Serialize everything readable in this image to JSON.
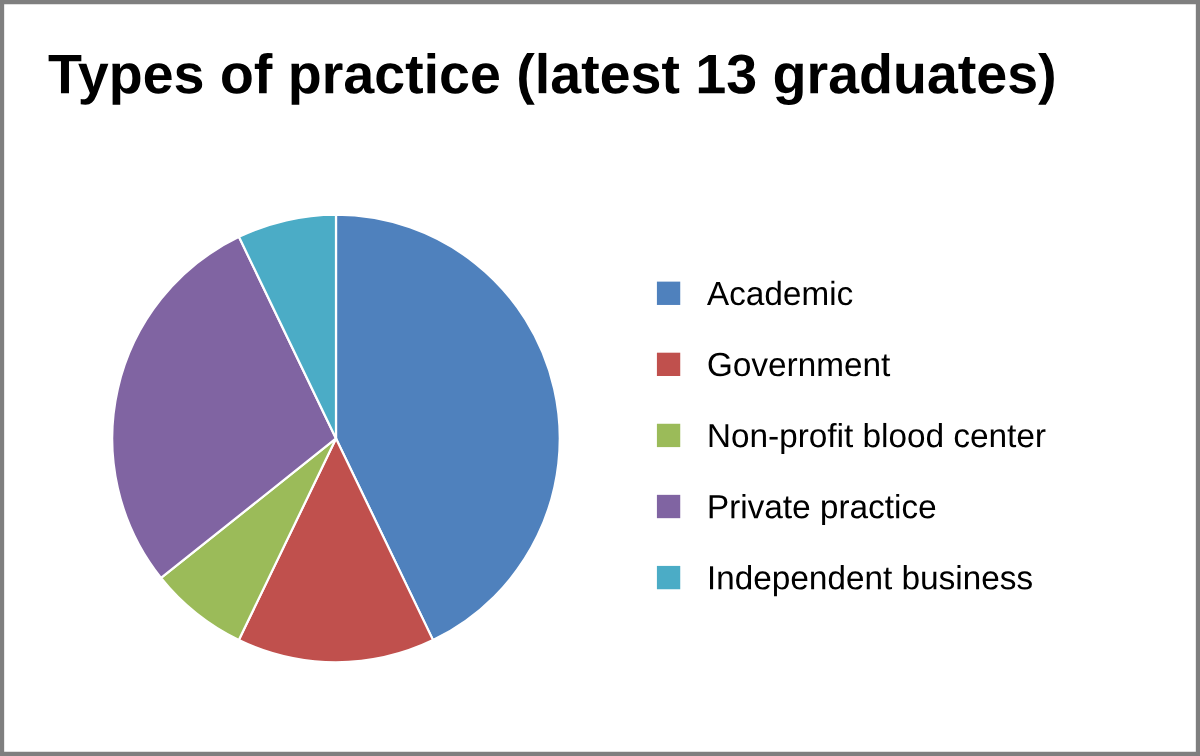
{
  "chart_data": {
    "type": "pie",
    "title": "Types of practice (latest 13 graduates)",
    "categories": [
      "Academic",
      "Government",
      "Non-profit blood center",
      "Private practice",
      "Independent business"
    ],
    "values": [
      42.86,
      14.29,
      7.14,
      28.57,
      7.14
    ],
    "colors": [
      "#4f81bd",
      "#c0504d",
      "#9bbb59",
      "#8064a2",
      "#4bacc6"
    ],
    "legend": "right"
  }
}
